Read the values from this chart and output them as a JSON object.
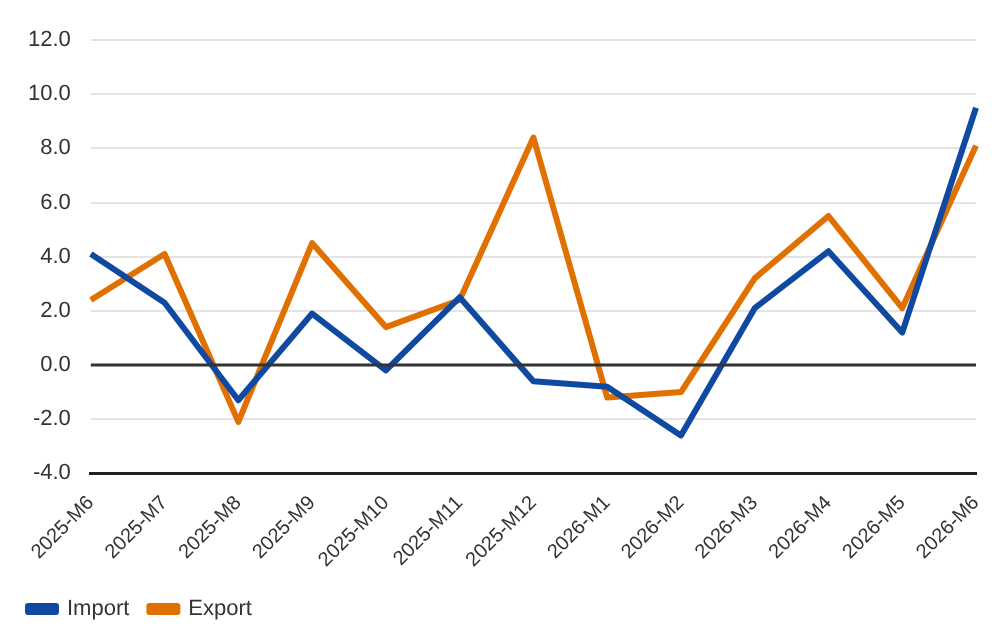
{
  "chart_data": {
    "type": "line",
    "categories": [
      "2025-M6",
      "2025-M7",
      "2025-M8",
      "2025-M9",
      "2025-M10",
      "2025-M11",
      "2025-M12",
      "2026-M1",
      "2026-M2",
      "2026-M3",
      "2026-M4",
      "2026-M5",
      "2026-M6"
    ],
    "series": [
      {
        "name": "Import",
        "color": "#0f4aa0",
        "values": [
          4.1,
          2.3,
          -1.3,
          1.9,
          -0.2,
          2.5,
          -0.6,
          -0.8,
          -2.6,
          2.1,
          4.2,
          1.2,
          9.5
        ]
      },
      {
        "name": "Export",
        "color": "#e07000",
        "values": [
          2.4,
          4.1,
          -2.1,
          4.5,
          1.4,
          2.4,
          8.4,
          -1.2,
          -1.0,
          3.2,
          5.5,
          2.1,
          8.1
        ]
      }
    ],
    "ylim": [
      -4,
      12
    ],
    "yticks": [
      {
        "value": -4,
        "label": "-4.0"
      },
      {
        "value": -2,
        "label": "-2.0"
      },
      {
        "value": 0,
        "label": "0.0"
      },
      {
        "value": 2,
        "label": "2.0"
      },
      {
        "value": 4,
        "label": "4.0"
      },
      {
        "value": 6,
        "label": "6.0"
      },
      {
        "value": 8,
        "label": "8.0"
      },
      {
        "value": 10,
        "label": "10.0"
      },
      {
        "value": 12,
        "label": "12.0"
      }
    ],
    "ref_lines": [
      {
        "axis": "y",
        "value": 0,
        "color": "#333333"
      }
    ],
    "grid": "y",
    "legend": "bottom left",
    "marker": "none",
    "line_style": "solid"
  }
}
